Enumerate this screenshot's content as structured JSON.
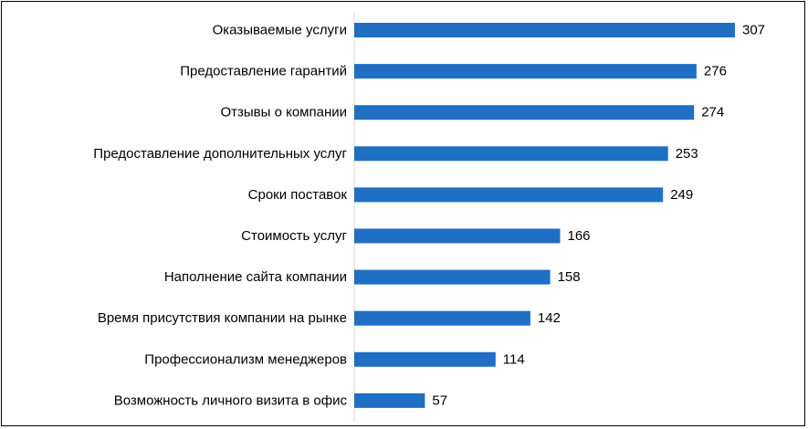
{
  "chart_data": {
    "type": "bar",
    "orientation": "horizontal",
    "categories": [
      "Оказываемые услуги",
      "Предоставление гарантий",
      "Отзывы о компании",
      "Предоставление дополнительных услуг",
      "Сроки поставок",
      "Стоимость услуг",
      "Наполнение сайта компании",
      "Время присутствия компании на рынке",
      "Профессионализм менеджеров",
      "Возможность личного визита в офис"
    ],
    "values": [
      307,
      276,
      274,
      253,
      249,
      166,
      158,
      142,
      114,
      57
    ],
    "data_labels": [
      "307",
      "276",
      "274",
      "253",
      "249",
      "166",
      "158",
      "142",
      "114",
      "57"
    ],
    "title": "",
    "xlabel": "",
    "ylabel": "",
    "xlim": [
      0,
      307
    ],
    "grid": false,
    "legend": "none",
    "bar_color": "#1f6fc5"
  }
}
